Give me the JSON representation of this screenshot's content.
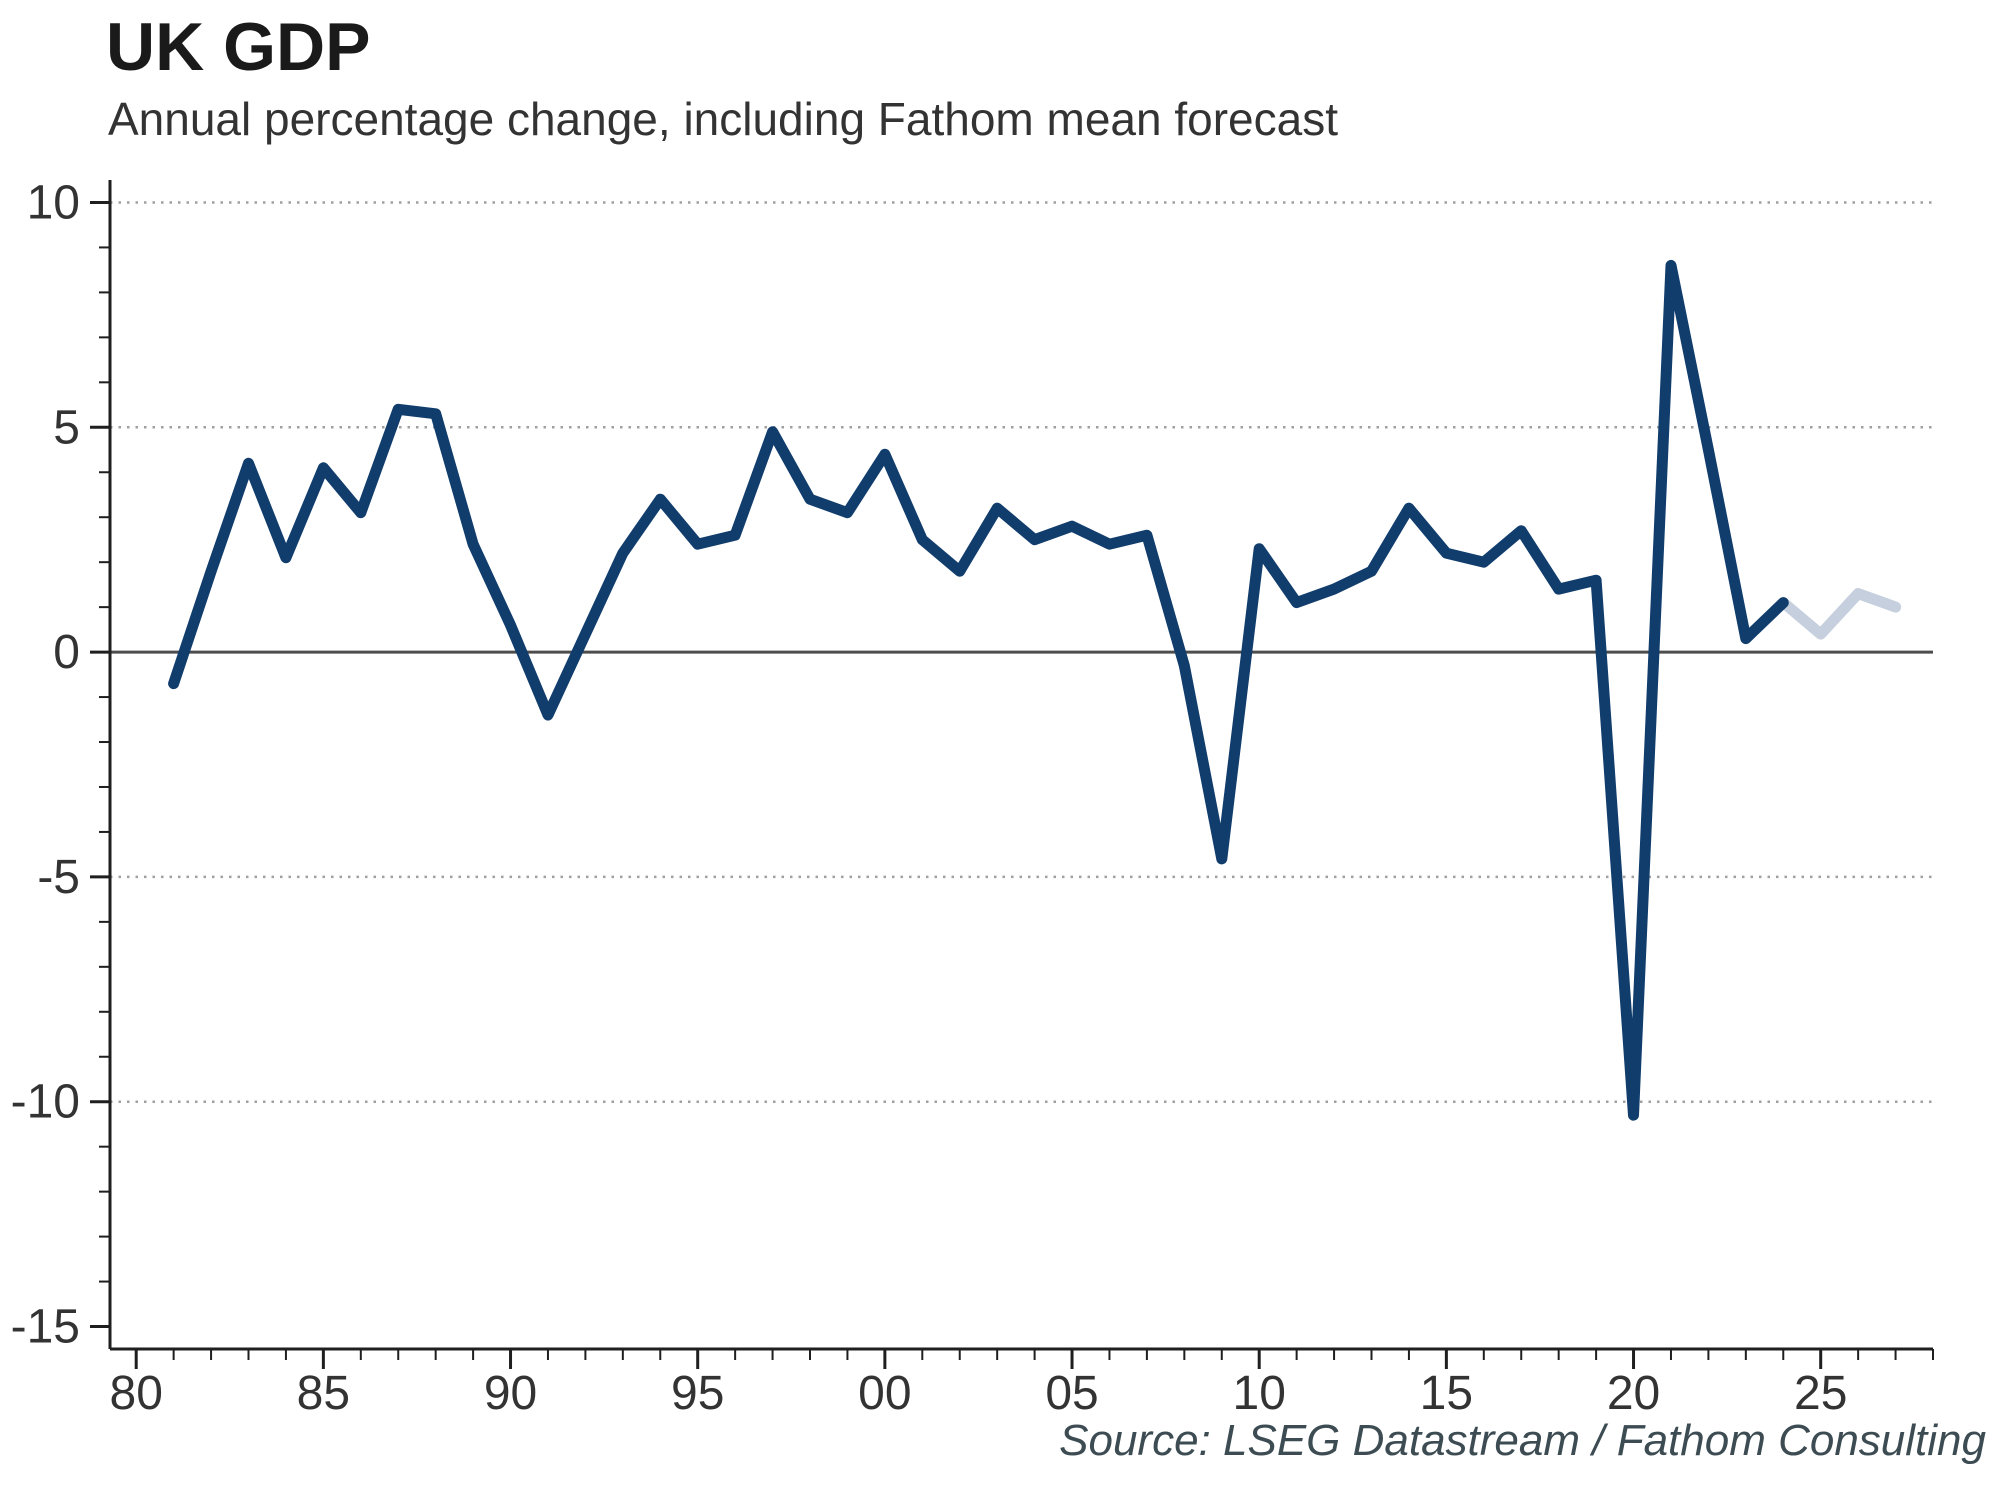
{
  "chart_data": {
    "type": "line",
    "title": "UK GDP",
    "subtitle": "Annual percentage change, including Fathom mean forecast",
    "source": "Source: LSEG Datastream / Fathom Consulting",
    "xlabel": "",
    "ylabel": "",
    "xlim": [
      1979.3,
      2028
    ],
    "ylim": [
      -15.5,
      10.5
    ],
    "grid": "horizontal dotted gridlines at -10, -5, 5, 10; solid line at 0",
    "legend_position": "none",
    "gridline_values": [
      10,
      5,
      -5,
      -10
    ],
    "zero_line_value": 0,
    "xticks": [
      {
        "v": 1980,
        "label": "80"
      },
      {
        "v": 1985,
        "label": "85"
      },
      {
        "v": 1990,
        "label": "90"
      },
      {
        "v": 1995,
        "label": "95"
      },
      {
        "v": 2000,
        "label": "00"
      },
      {
        "v": 2005,
        "label": "05"
      },
      {
        "v": 2010,
        "label": "10"
      },
      {
        "v": 2015,
        "label": "15"
      },
      {
        "v": 2020,
        "label": "20"
      },
      {
        "v": 2025,
        "label": "25"
      }
    ],
    "xtick_minor_step": 1,
    "yticks": [
      {
        "v": -15,
        "label": "-15"
      },
      {
        "v": -10,
        "label": "-10"
      },
      {
        "v": -5,
        "label": "-5"
      },
      {
        "v": 0,
        "label": "0"
      },
      {
        "v": 5,
        "label": "5"
      },
      {
        "v": 10,
        "label": "10"
      }
    ],
    "ytick_minor_step": 1,
    "series": [
      {
        "name": "actual",
        "color": "#113d6d",
        "x": [
          1981,
          1982,
          1983,
          1984,
          1985,
          1986,
          1987,
          1988,
          1989,
          1990,
          1991,
          1992,
          1993,
          1994,
          1995,
          1996,
          1997,
          1998,
          1999,
          2000,
          2001,
          2002,
          2003,
          2004,
          2005,
          2006,
          2007,
          2008,
          2009,
          2010,
          2011,
          2012,
          2013,
          2014,
          2015,
          2016,
          2017,
          2018,
          2019,
          2020,
          2021,
          2022,
          2023,
          2024
        ],
        "values": [
          -0.7,
          1.8,
          4.2,
          2.1,
          4.1,
          3.1,
          5.4,
          5.3,
          2.4,
          0.6,
          -1.4,
          0.4,
          2.2,
          3.4,
          2.4,
          2.6,
          4.9,
          3.4,
          3.1,
          4.4,
          2.5,
          1.8,
          3.2,
          2.5,
          2.8,
          2.4,
          2.6,
          -0.3,
          -4.6,
          2.3,
          1.1,
          1.4,
          1.8,
          3.2,
          2.2,
          2.0,
          2.7,
          1.4,
          1.6,
          -10.3,
          8.6,
          4.5,
          0.3,
          1.1
        ]
      },
      {
        "name": "fathom-mean-forecast",
        "color": "#c5cfdd",
        "x": [
          2024,
          2025,
          2026,
          2027
        ],
        "values": [
          1.1,
          0.4,
          1.3,
          1.0
        ]
      }
    ],
    "colors": {
      "line": "#113d6d",
      "forecast": "#c5cfdd",
      "grid": "#a0a0a0",
      "zero_line": "#4d4d4d",
      "axis": "#1f1f1f",
      "label": "#333333"
    }
  }
}
